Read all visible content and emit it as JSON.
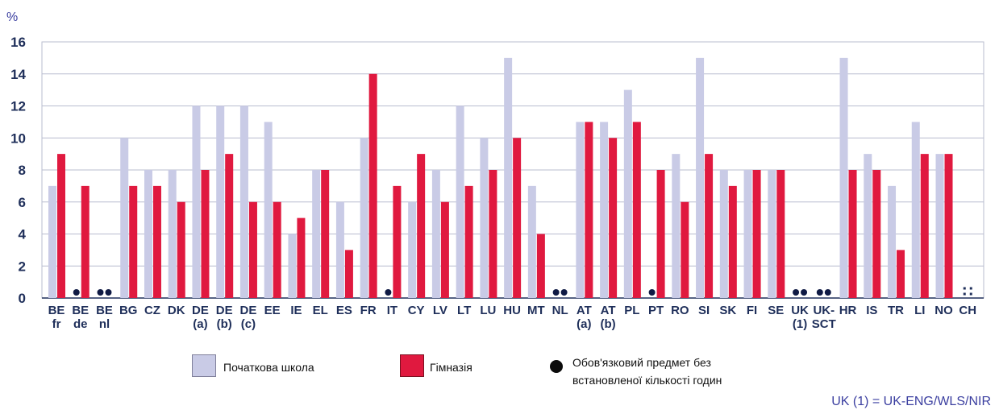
{
  "chart_data": {
    "type": "bar",
    "ylabel": "%",
    "ylim": [
      0,
      16
    ],
    "yticks": [
      "0",
      "2",
      "4",
      "6",
      "8",
      "10",
      "12",
      "14",
      "16"
    ],
    "grid": true,
    "categories": [
      [
        "BE",
        "fr"
      ],
      [
        "BE",
        "de"
      ],
      [
        "BE",
        "nl"
      ],
      [
        "BG"
      ],
      [
        "CZ"
      ],
      [
        "DK"
      ],
      [
        "DE",
        "(a)"
      ],
      [
        "DE",
        "(b)"
      ],
      [
        "DE",
        "(c)"
      ],
      [
        "EE"
      ],
      [
        "IE"
      ],
      [
        "EL"
      ],
      [
        "ES"
      ],
      [
        "FR"
      ],
      [
        "IT"
      ],
      [
        "CY"
      ],
      [
        "LV"
      ],
      [
        "LT"
      ],
      [
        "LU"
      ],
      [
        "HU"
      ],
      [
        "MT"
      ],
      [
        "NL"
      ],
      [
        "AT",
        "(a)"
      ],
      [
        "AT",
        "(b)"
      ],
      [
        "PL"
      ],
      [
        "PT"
      ],
      [
        "RO"
      ],
      [
        "SI"
      ],
      [
        "SK"
      ],
      [
        "FI"
      ],
      [
        "SE"
      ],
      [
        "UK",
        "(1)"
      ],
      [
        "UK-",
        "SCT"
      ],
      [
        "HR"
      ],
      [
        "IS"
      ],
      [
        "TR"
      ],
      [
        "LI"
      ],
      [
        "NO"
      ],
      [
        "CH"
      ]
    ],
    "series": [
      {
        "name": "Початкова школа",
        "color": "#c9cbe6",
        "values": [
          7,
          null,
          null,
          10,
          8,
          8,
          12,
          12,
          12,
          11,
          4,
          8,
          6,
          10,
          null,
          6,
          8,
          12,
          10,
          15,
          7,
          null,
          11,
          11,
          13,
          null,
          9,
          15,
          8,
          8,
          8,
          null,
          null,
          15,
          9,
          7,
          11,
          9,
          null
        ]
      },
      {
        "name": "Гімназія",
        "color": "#e0193f",
        "values": [
          9,
          7,
          null,
          7,
          7,
          6,
          8,
          9,
          6,
          6,
          5,
          8,
          3,
          14,
          7,
          9,
          6,
          7,
          8,
          10,
          4,
          null,
          11,
          10,
          11,
          8,
          6,
          9,
          7,
          8,
          8,
          null,
          null,
          8,
          8,
          3,
          9,
          9,
          null
        ]
      }
    ],
    "markers": [
      {
        "category": "BE de",
        "primary": true,
        "secondary": false
      },
      {
        "category": "BE nl",
        "primary": true,
        "secondary": true
      },
      {
        "category": "IT",
        "primary": true,
        "secondary": false
      },
      {
        "category": "NL",
        "primary": true,
        "secondary": true
      },
      {
        "category": "PT",
        "primary": true,
        "secondary": false
      },
      {
        "category": "UK (1)",
        "primary": true,
        "secondary": true
      },
      {
        "category": "UK-SCT",
        "primary": true,
        "secondary": true
      }
    ],
    "no_data_symbol": ":",
    "no_data_category": "CH",
    "legend": {
      "primary": "Початкова школа",
      "secondary": "Гімназія",
      "marker_line1": "Обов'язковий предмет без",
      "marker_line2": "встановленої кількості годин"
    },
    "note": "UK (1) = UK-ENG/WLS/NIR"
  }
}
